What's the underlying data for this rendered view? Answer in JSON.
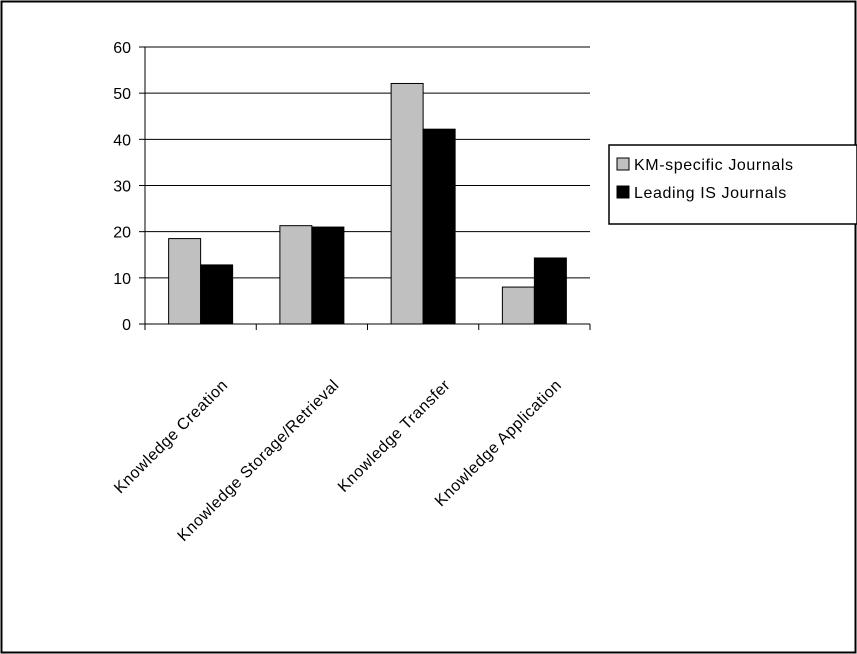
{
  "chart_data": {
    "type": "bar",
    "title": "",
    "xlabel": "",
    "ylabel": "",
    "categories": [
      "Knowledge Creation",
      "Knowledge Storage/Retrieval",
      "Knowledge Transfer",
      "Knowledge Application"
    ],
    "series": [
      {
        "name": "KM-specific Journals",
        "color": "#c0c0c0",
        "values": [
          18.5,
          21.3,
          52.1,
          8.0
        ]
      },
      {
        "name": "Leading IS Journals",
        "color": "#000000",
        "values": [
          12.8,
          21.0,
          42.2,
          14.3
        ]
      }
    ],
    "ylim": [
      0,
      60
    ],
    "yticks": [
      0,
      10,
      20,
      30,
      40,
      50,
      60
    ],
    "grid": true,
    "legend_position": "right"
  }
}
